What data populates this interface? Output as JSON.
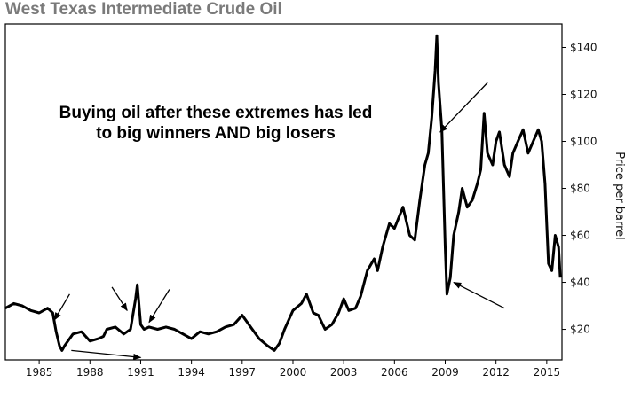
{
  "chart_data": {
    "type": "line",
    "title": "West Texas Intermediate Crude Oil",
    "ylabel": "Price per barrel",
    "xlabel": "",
    "xlim": [
      1983.0,
      2015.9
    ],
    "ylim": [
      7,
      150
    ],
    "x_ticks": [
      1985,
      1988,
      1991,
      1994,
      1997,
      2000,
      2003,
      2006,
      2009,
      2012,
      2015
    ],
    "y_ticks": [
      20,
      40,
      60,
      80,
      100,
      120,
      140
    ],
    "y_tick_labels": [
      "$20",
      "$40",
      "$60",
      "$80",
      "$100",
      "$120",
      "$140"
    ],
    "annotation": [
      "Buying oil after these extremes has led",
      "to big winners AND big losers"
    ],
    "series": [
      {
        "color": "#000000",
        "x": [
          1983.0,
          1983.5,
          1984.0,
          1984.5,
          1985.0,
          1985.5,
          1985.8,
          1986.0,
          1986.2,
          1986.35,
          1986.5,
          1986.7,
          1987.0,
          1987.5,
          1988.0,
          1988.5,
          1988.8,
          1989.0,
          1989.5,
          1990.0,
          1990.4,
          1990.7,
          1990.8,
          1991.0,
          1991.2,
          1991.5,
          1992.0,
          1992.5,
          1993.0,
          1993.5,
          1994.0,
          1994.5,
          1995.0,
          1995.5,
          1996.0,
          1996.5,
          1997.0,
          1997.5,
          1998.0,
          1998.5,
          1998.9,
          1999.2,
          1999.5,
          2000.0,
          2000.5,
          2000.8,
          2001.2,
          2001.5,
          2001.9,
          2002.3,
          2002.7,
          2003.0,
          2003.3,
          2003.7,
          2004.0,
          2004.4,
          2004.8,
          2005.0,
          2005.3,
          2005.7,
          2006.0,
          2006.5,
          2006.9,
          2007.2,
          2007.5,
          2007.8,
          2008.0,
          2008.2,
          2008.4,
          2008.5,
          2008.6,
          2008.8,
          2009.0,
          2009.1,
          2009.3,
          2009.5,
          2009.8,
          2010.0,
          2010.3,
          2010.6,
          2010.9,
          2011.1,
          2011.3,
          2011.5,
          2011.8,
          2012.0,
          2012.2,
          2012.5,
          2012.8,
          2013.0,
          2013.3,
          2013.6,
          2013.9,
          2014.2,
          2014.5,
          2014.7,
          2014.9,
          2015.0,
          2015.1,
          2015.3,
          2015.5,
          2015.7,
          2015.8
        ],
        "y": [
          29,
          31,
          30,
          28,
          27,
          29,
          27,
          19,
          13,
          11,
          13,
          15,
          18,
          19,
          15,
          16,
          17,
          20,
          21,
          18,
          20,
          33,
          39,
          22,
          20,
          21,
          20,
          21,
          20,
          18,
          16,
          19,
          18,
          19,
          21,
          22,
          26,
          21,
          16,
          13,
          11,
          14,
          20,
          28,
          31,
          35,
          27,
          26,
          20,
          22,
          27,
          33,
          28,
          29,
          34,
          45,
          50,
          45,
          55,
          65,
          63,
          72,
          60,
          58,
          75,
          90,
          95,
          110,
          130,
          145,
          125,
          105,
          55,
          35,
          42,
          60,
          70,
          80,
          72,
          75,
          82,
          88,
          112,
          95,
          90,
          100,
          104,
          90,
          85,
          95,
          100,
          105,
          95,
          100,
          105,
          100,
          82,
          65,
          48,
          45,
          60,
          55,
          42
        ]
      }
    ],
    "arrows": [
      {
        "from": [
          1986.8,
          35
        ],
        "to": [
          1985.9,
          24
        ]
      },
      {
        "from": [
          1986.9,
          11
        ],
        "to": [
          1991.0,
          8
        ]
      },
      {
        "from": [
          1989.3,
          38
        ],
        "to": [
          1990.2,
          28
        ]
      },
      {
        "from": [
          1992.7,
          37
        ],
        "to": [
          1991.5,
          23
        ]
      },
      {
        "from": [
          2011.5,
          125
        ],
        "to": [
          2008.7,
          104
        ]
      },
      {
        "from": [
          2012.5,
          29
        ],
        "to": [
          2009.5,
          40
        ]
      }
    ]
  }
}
